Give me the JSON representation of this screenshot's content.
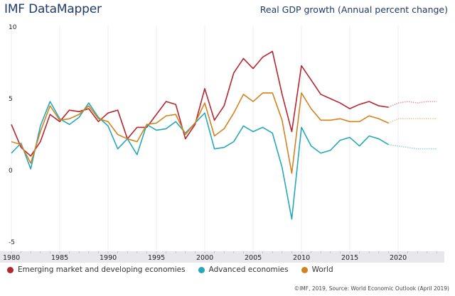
{
  "header": {
    "brand": "IMF DataMapper",
    "title": "Real GDP growth (Annual percent change)"
  },
  "footer": {
    "credit": "©IMF, 2019, Source: World Economic Outlook (April 2019)"
  },
  "chart_data": {
    "type": "line",
    "title": "Real GDP growth (Annual percent change)",
    "xlabel": "",
    "ylabel": "",
    "xlim": [
      1980,
      2024
    ],
    "ylim": [
      -5,
      10
    ],
    "yticks": [
      10,
      5,
      0,
      -5
    ],
    "xticks": [
      1980,
      1985,
      1990,
      1995,
      2000,
      2005,
      2010,
      2015,
      2020
    ],
    "grid": "vertical",
    "legend_position": "bottom-left",
    "projection_start": 2019,
    "x": [
      1980,
      1981,
      1982,
      1983,
      1984,
      1985,
      1986,
      1987,
      1988,
      1989,
      1990,
      1991,
      1992,
      1993,
      1994,
      1995,
      1996,
      1997,
      1998,
      1999,
      2000,
      2001,
      2002,
      2003,
      2004,
      2005,
      2006,
      2007,
      2008,
      2009,
      2010,
      2011,
      2012,
      2013,
      2014,
      2015,
      2016,
      2017,
      2018,
      2019,
      2020,
      2021,
      2022,
      2023,
      2024
    ],
    "series": [
      {
        "name": "Emerging market and developing economies",
        "color": "#b5262e",
        "values": [
          3.2,
          1.6,
          1.0,
          2.0,
          3.9,
          3.4,
          4.2,
          4.1,
          4.3,
          3.4,
          4.0,
          4.2,
          2.2,
          3.0,
          3.0,
          3.9,
          4.8,
          4.6,
          2.2,
          3.2,
          5.7,
          3.5,
          4.5,
          6.8,
          7.8,
          7.1,
          7.9,
          8.3,
          5.3,
          2.7,
          7.3,
          6.3,
          5.3,
          5.0,
          4.7,
          4.3,
          4.6,
          4.8,
          4.5,
          4.4,
          4.7,
          4.8,
          4.7,
          4.8,
          4.8
        ]
      },
      {
        "name": "Advanced economies",
        "color": "#27a8b8",
        "values": [
          1.2,
          1.9,
          0.1,
          3.1,
          4.8,
          3.6,
          3.2,
          3.7,
          4.7,
          3.7,
          3.1,
          1.5,
          2.2,
          1.1,
          3.2,
          2.8,
          2.9,
          3.4,
          2.6,
          3.3,
          4.0,
          1.5,
          1.6,
          2.0,
          3.1,
          2.7,
          3.0,
          2.6,
          0.2,
          -3.4,
          3.0,
          1.7,
          1.2,
          1.4,
          2.1,
          2.3,
          1.7,
          2.4,
          2.2,
          1.8,
          1.7,
          1.6,
          1.5,
          1.5,
          1.5
        ]
      },
      {
        "name": "World",
        "color": "#d2831f",
        "values": [
          2.0,
          1.8,
          0.5,
          2.7,
          4.5,
          3.5,
          3.6,
          3.9,
          4.5,
          3.6,
          3.4,
          2.5,
          2.2,
          2.0,
          3.2,
          3.3,
          3.8,
          3.9,
          2.5,
          3.3,
          4.7,
          2.4,
          2.9,
          4.0,
          5.3,
          4.8,
          5.4,
          5.4,
          3.5,
          -0.2,
          5.4,
          4.3,
          3.5,
          3.5,
          3.6,
          3.4,
          3.4,
          3.8,
          3.6,
          3.3,
          3.6,
          3.6,
          3.6,
          3.6,
          3.6
        ]
      }
    ]
  }
}
